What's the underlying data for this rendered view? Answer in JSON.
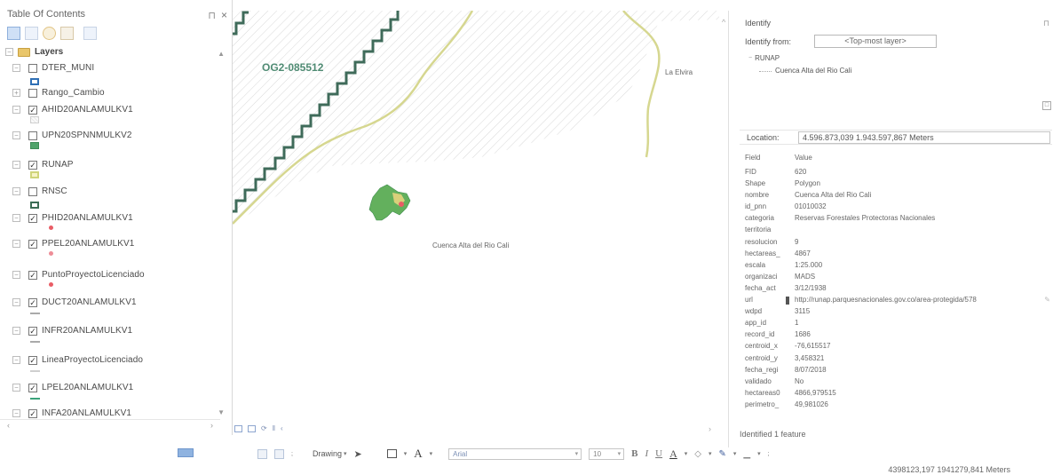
{
  "toc": {
    "title": "Table Of Contents",
    "pin_glyph": "⊓",
    "close_glyph": "×",
    "root": {
      "expander": "−",
      "label": "Layers"
    },
    "layers": [
      {
        "name": "DTER_MUNI",
        "checked": false,
        "expander": "−",
        "symbol": "blue-outline-box"
      },
      {
        "name": "Rango_Cambio",
        "checked": false,
        "expander": "+",
        "symbol": "none"
      },
      {
        "name": "AHID20ANLAMULKV1",
        "checked": true,
        "expander": "−",
        "symbol": "hatched-box"
      },
      {
        "name": "UPN20SPNNMULKV2",
        "checked": false,
        "expander": "−",
        "symbol": "green-fill"
      },
      {
        "name": "RUNAP",
        "checked": true,
        "expander": "−",
        "symbol": "yellow-fill"
      },
      {
        "name": "RNSC",
        "checked": false,
        "expander": "−",
        "symbol": "dark-green-outline"
      },
      {
        "name": "PHID20ANLAMULKV1",
        "checked": true,
        "expander": "−",
        "symbol": "red-dot"
      },
      {
        "name": "PPEL20ANLAMULKV1",
        "checked": true,
        "expander": "−",
        "symbol": "pink-dot"
      },
      {
        "name": "PuntoProyectoLicenciado",
        "checked": true,
        "expander": "−",
        "symbol": "red-dot"
      },
      {
        "name": "DUCT20ANLAMULKV1",
        "checked": true,
        "expander": "−",
        "symbol": "gray-line"
      },
      {
        "name": "INFR20ANLAMULKV1",
        "checked": true,
        "expander": "−",
        "symbol": "gray-line"
      },
      {
        "name": "LineaProyectoLicenciado",
        "checked": true,
        "expander": "−",
        "symbol": "light-gray-line"
      },
      {
        "name": "LPEL20ANLAMULKV1",
        "checked": true,
        "expander": "−",
        "symbol": "teal-line"
      },
      {
        "name": "INFA20ANLAMULKV1",
        "checked": true,
        "expander": "−",
        "symbol": "none"
      }
    ]
  },
  "map": {
    "labels": {
      "block": "OG2-085512",
      "town": "La Elvira",
      "area": "Cuenca Alta del Rio Cali"
    }
  },
  "identify": {
    "title": "Identify",
    "pin_glyph": "⊓",
    "from_label": "Identify from:",
    "from_value": "<Top-most layer>",
    "tree": {
      "layer": "RUNAP",
      "feature": "Cuenca Alta del Rio Cali"
    },
    "location_label": "Location:",
    "location_value": "4.596.873,039  1.943.597,867 Meters",
    "header_field": "Field",
    "header_value": "Value",
    "attributes": [
      {
        "field": "FID",
        "value": "620"
      },
      {
        "field": "Shape",
        "value": "Polygon"
      },
      {
        "field": "nombre",
        "value": "Cuenca Alta del Rio Cali"
      },
      {
        "field": "id_pnn",
        "value": "01010032"
      },
      {
        "field": "categoria",
        "value": "Reservas Forestales Protectoras Nacionales"
      },
      {
        "field": "territoria",
        "value": ""
      },
      {
        "field": "resolucion",
        "value": "9"
      },
      {
        "field": "hectareas_",
        "value": "4867"
      },
      {
        "field": "escala",
        "value": "1:25.000"
      },
      {
        "field": "organizaci",
        "value": "MADS"
      },
      {
        "field": "fecha_act",
        "value": "3/12/1938"
      },
      {
        "field": "url",
        "value": "http://runap.parquesnacionales.gov.co/area-protegida/578"
      },
      {
        "field": "wdpd",
        "value": "3115"
      },
      {
        "field": "app_id",
        "value": "1"
      },
      {
        "field": "record_id",
        "value": "1686"
      },
      {
        "field": "centroid_x",
        "value": "-76,615517"
      },
      {
        "field": "centroid_y",
        "value": "3,458321"
      },
      {
        "field": "fecha_regi",
        "value": "8/07/2018"
      },
      {
        "field": "validado",
        "value": "No"
      },
      {
        "field": "hectareas0",
        "value": "4866,979515"
      },
      {
        "field": "perimetro_",
        "value": "49,981026"
      }
    ],
    "footer": "Identified 1 feature"
  },
  "toolbar": {
    "drawing_label": "Drawing",
    "font_name": "Arial",
    "font_size": "10",
    "bold": "B",
    "italic": "I",
    "underline": "U",
    "text_a": "A"
  },
  "status": {
    "coordinates": "4398123,197  1941279,841 Meters"
  },
  "colors": {
    "hatch_line": "#d8d8d8",
    "block_boundary": "#3f6b5a",
    "road": "#d6d790",
    "protected_area": "#63b05d",
    "protected_area_dark": "#3f8e4e"
  }
}
